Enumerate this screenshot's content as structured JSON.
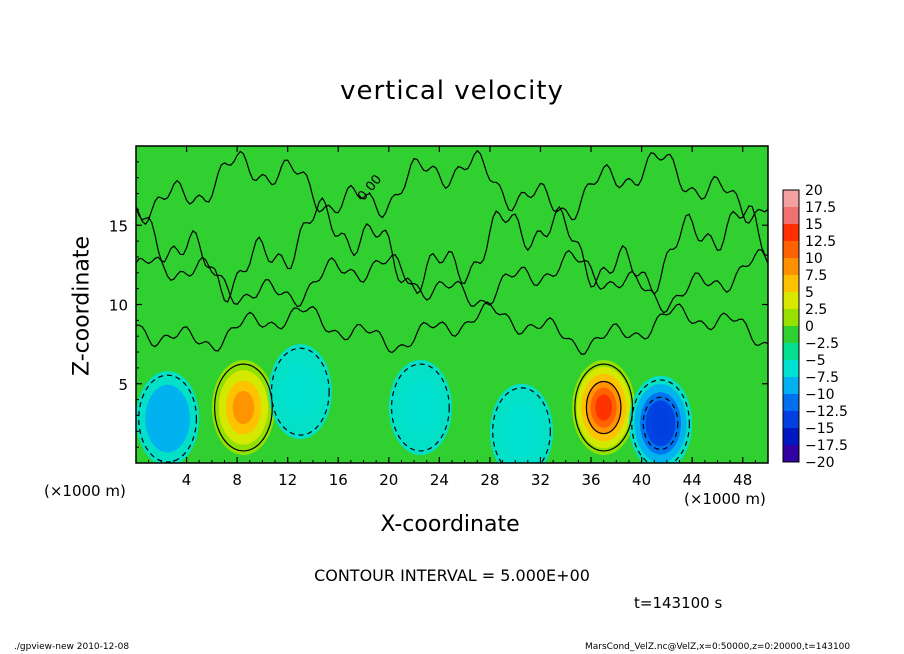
{
  "chart_data": {
    "type": "heatmap",
    "title": "vertical velocity",
    "xlabel": "X-coordinate",
    "ylabel": "Z-coordinate",
    "x_unit_left": "(×1000 m)",
    "x_unit_right": "(×1000 m)",
    "xlim": [
      0,
      50
    ],
    "ylim": [
      0,
      20
    ],
    "x_ticks": [
      4,
      8,
      12,
      16,
      20,
      24,
      28,
      32,
      36,
      40,
      44,
      48
    ],
    "y_ticks": [
      5,
      10,
      15
    ],
    "colorbar": {
      "levels": [
        20,
        17.5,
        15,
        12.5,
        10,
        7.5,
        5,
        2.5,
        0,
        -2.5,
        -5,
        -7.5,
        -10,
        -12.5,
        -15,
        -17.5,
        -20
      ],
      "labels": [
        "20",
        "17.5",
        "15",
        "12.5",
        "10",
        "7.5",
        "5",
        "2.5",
        "0",
        "−2.5",
        "−5",
        "−7.5",
        "−10",
        "−12.5",
        "−15",
        "−17.5",
        "−20"
      ],
      "colors": [
        "#f4a0a0",
        "#f07070",
        "#ff3000",
        "#ff6000",
        "#ff9000",
        "#ffc000",
        "#d8e800",
        "#98e000",
        "#30d030",
        "#00e090",
        "#00e0d0",
        "#00b0f0",
        "#0070f0",
        "#0040e0",
        "#0018c0",
        "#3000a0",
        "#7000b0"
      ]
    },
    "contour_label": "0.00",
    "features": [
      {
        "x": 2.5,
        "z": 2.8,
        "w": -5.5
      },
      {
        "x": 8.5,
        "z": 3.5,
        "w": 9.5
      },
      {
        "x": 13.0,
        "z": 4.5,
        "w": -4.5
      },
      {
        "x": 22.5,
        "z": 3.5,
        "w": -3.5
      },
      {
        "x": 30.5,
        "z": 2.0,
        "w": -2.5
      },
      {
        "x": 37.0,
        "z": 3.5,
        "w": 13.5
      },
      {
        "x": 41.5,
        "z": 2.5,
        "w": -12.0
      }
    ],
    "contour_interval_text": "CONTOUR INTERVAL = 5.000E+00",
    "time_text": "t=143100 s"
  },
  "footer": {
    "left": "./gpview-new   2010-12-08",
    "right": "MarsCond_VelZ.nc@VelZ,x=0:50000,z=0:20000,t=143100"
  }
}
